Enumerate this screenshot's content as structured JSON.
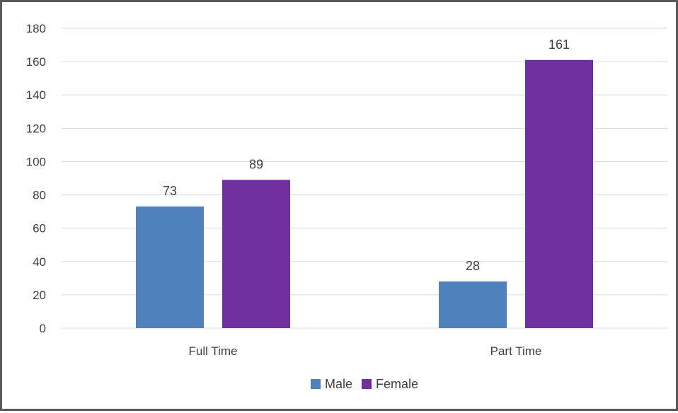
{
  "chart_data": {
    "type": "bar",
    "categories": [
      "Full Time",
      "Part Time"
    ],
    "series": [
      {
        "name": "Male",
        "values": [
          73,
          28
        ],
        "color": "#4f81bd"
      },
      {
        "name": "Female",
        "values": [
          89,
          161
        ],
        "color": "#7030a0"
      }
    ],
    "ylim": [
      0,
      180
    ],
    "yticks": [
      0,
      20,
      40,
      60,
      80,
      100,
      120,
      140,
      160,
      180
    ],
    "grid": true,
    "legend_position": "bottom",
    "data_labels": true,
    "gridline_color": "#d9d9d9",
    "frame_color": "#595959"
  }
}
